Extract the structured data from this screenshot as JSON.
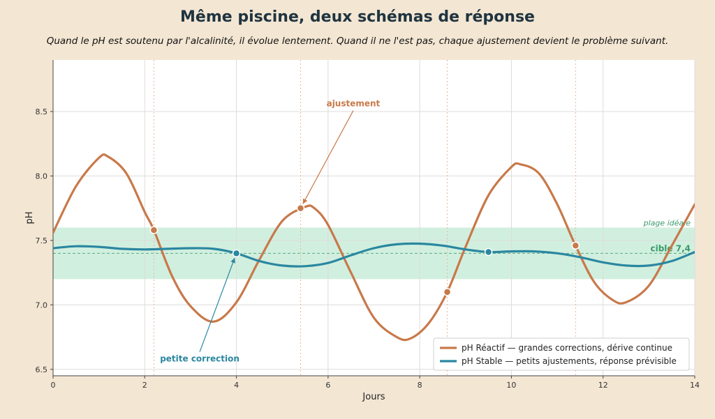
{
  "title": "Même piscine, deux schémas de réponse",
  "subtitle": "Quand le pH est soutenu par l'alcalinité, il évolue lentement. Quand il ne l'est pas, chaque ajustement devient le problème suivant.",
  "colors": {
    "background": "#f3e6d3",
    "plot_bg": "#ffffff",
    "reactive": "#c8794a",
    "stable": "#2a87a0",
    "ideal_band": "#c9ecd9",
    "target": "#3a9a6a"
  },
  "chart_data": {
    "type": "line",
    "xlabel": "Jours",
    "ylabel": "pH",
    "xlim": [
      0,
      14
    ],
    "ylim": [
      6.45,
      8.9
    ],
    "xticks": [
      0,
      2,
      4,
      6,
      8,
      10,
      12,
      14
    ],
    "xtick_labels": [
      "0",
      "2",
      "4",
      "6",
      "8",
      "10",
      "12",
      "14"
    ],
    "yticks": [
      6.5,
      7.0,
      7.5,
      8.0,
      8.5
    ],
    "ytick_labels": [
      "6.5",
      "7.0",
      "7.5",
      "8.0",
      "8.5"
    ],
    "grid": true,
    "legend_position": "bottom-right",
    "ideal_range": {
      "ymin": 7.2,
      "ymax": 7.6,
      "label": "plage idéale"
    },
    "target": {
      "y": 7.4,
      "label": "cible 7,4"
    },
    "series": [
      {
        "name": "pH Réactif — grandes corrections, dérive continue",
        "color": "#c8794a",
        "x": [
          0,
          0.5,
          1.0,
          1.2,
          1.6,
          2.0,
          2.2,
          2.6,
          3.0,
          3.5,
          4.0,
          4.5,
          5.0,
          5.5,
          5.7,
          6.0,
          6.5,
          7.0,
          7.5,
          7.8,
          8.2,
          8.6,
          9.0,
          9.5,
          10.0,
          10.2,
          10.6,
          11.0,
          11.4,
          11.8,
          12.2,
          12.5,
          13.0,
          13.5,
          14.0
        ],
        "values": [
          7.56,
          7.92,
          8.14,
          8.15,
          8.02,
          7.72,
          7.58,
          7.22,
          6.99,
          6.87,
          7.02,
          7.35,
          7.65,
          7.76,
          7.75,
          7.62,
          7.25,
          6.9,
          6.75,
          6.74,
          6.86,
          7.1,
          7.45,
          7.85,
          8.07,
          8.09,
          8.02,
          7.78,
          7.46,
          7.18,
          7.04,
          7.02,
          7.15,
          7.46,
          7.78
        ],
        "markers": [
          {
            "x": 2.2,
            "y": 7.58
          },
          {
            "x": 5.4,
            "y": 7.75
          },
          {
            "x": 8.6,
            "y": 7.1
          },
          {
            "x": 11.4,
            "y": 7.46
          }
        ]
      },
      {
        "name": "pH Stable — petits ajustements, réponse prévisible",
        "color": "#2a87a0",
        "x": [
          0,
          0.5,
          1.0,
          1.5,
          2.0,
          2.5,
          3.0,
          3.5,
          4.0,
          4.5,
          5.0,
          5.5,
          6.0,
          6.5,
          7.0,
          7.5,
          8.0,
          8.5,
          9.0,
          9.5,
          10.0,
          10.5,
          11.0,
          11.5,
          12.0,
          12.5,
          13.0,
          13.5,
          14.0
        ],
        "values": [
          7.44,
          7.455,
          7.45,
          7.435,
          7.43,
          7.435,
          7.44,
          7.435,
          7.4,
          7.34,
          7.305,
          7.3,
          7.325,
          7.385,
          7.44,
          7.47,
          7.475,
          7.46,
          7.43,
          7.41,
          7.415,
          7.415,
          7.4,
          7.37,
          7.33,
          7.305,
          7.305,
          7.34,
          7.41
        ],
        "markers": [
          {
            "x": 4.0,
            "y": 7.4
          },
          {
            "x": 9.5,
            "y": 7.41
          }
        ]
      }
    ],
    "annotations": [
      {
        "text": "ajustement",
        "series": 0,
        "point": {
          "x": 5.4,
          "y": 7.75
        },
        "text_at": {
          "x": 6.55,
          "y": 8.54
        }
      },
      {
        "text": "petite correction",
        "series": 1,
        "point": {
          "x": 4.0,
          "y": 7.4
        },
        "text_at": {
          "x": 3.2,
          "y": 6.56
        }
      }
    ]
  }
}
